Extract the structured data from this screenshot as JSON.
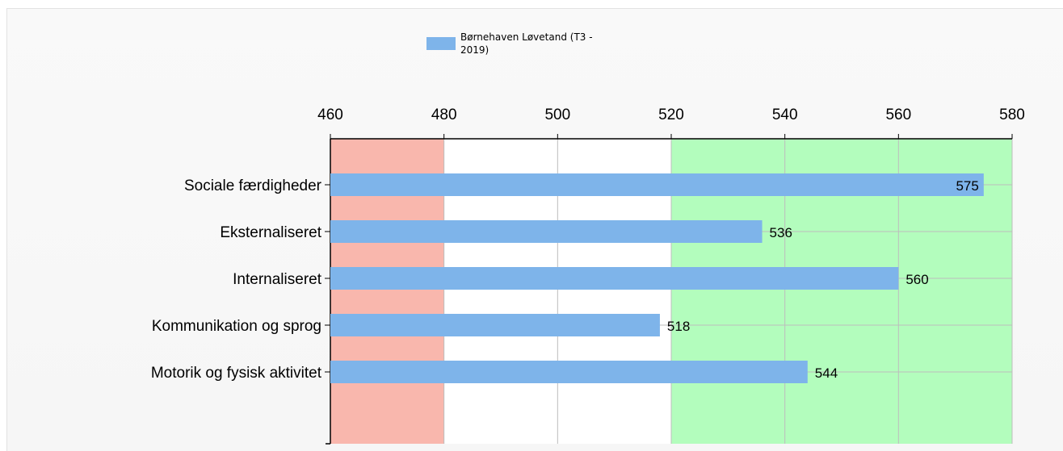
{
  "chart_data": {
    "type": "bar",
    "orientation": "horizontal",
    "categories": [
      "Sociale færdigheder",
      "Eksternaliseret",
      "Internaliseret",
      "Kommunikation og sprog",
      "Motorik og fysisk aktivitet"
    ],
    "series": [
      {
        "name": "Børnehaven Løvetand (T3 -\n2019)",
        "color": "#7eb4ea",
        "values": [
          575,
          536,
          560,
          518,
          544
        ]
      }
    ],
    "data_labels": [
      "575",
      "536",
      "560",
      "518",
      "544"
    ],
    "xlim": [
      460,
      580
    ],
    "x_ticks": [
      460,
      480,
      500,
      520,
      540,
      560,
      580
    ],
    "x_axis_position": "top",
    "grid": true,
    "legend_position": "top",
    "bands": [
      {
        "from": 460,
        "to": 480,
        "color": "#f9b7ad"
      },
      {
        "from": 480,
        "to": 520,
        "color": "#ffffff"
      },
      {
        "from": 520,
        "to": 580,
        "color": "#b3fdbd"
      }
    ]
  }
}
